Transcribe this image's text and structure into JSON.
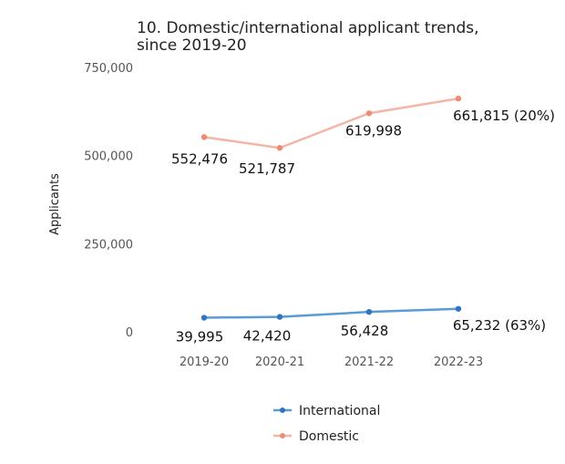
{
  "chart_data": {
    "type": "line",
    "title_lines": [
      "10. Domestic/international applicant trends,",
      "since 2019-20"
    ],
    "xlabel": "",
    "ylabel": "Applicants",
    "categories": [
      "2019-20",
      "2020-21",
      "2021-22",
      "2022-23"
    ],
    "ylim": [
      0,
      750000
    ],
    "yticks": [
      0,
      250000,
      500000,
      750000
    ],
    "ytick_labels": [
      "0",
      "250,000",
      "500,000",
      "750,000"
    ],
    "grid": false,
    "legend_position": "bottom",
    "series": [
      {
        "name": "International",
        "color": "#5b9bd5",
        "marker_color": "#2e75c7",
        "values": [
          39995,
          42420,
          56428,
          65232
        ],
        "labels": [
          "39,995",
          "42,420",
          "56,428",
          "65,232 (63%)"
        ]
      },
      {
        "name": "Domestic",
        "color": "#f4b5a7",
        "marker_color": "#ee8b73",
        "values": [
          552476,
          521787,
          619998,
          661815
        ],
        "labels": [
          "552,476",
          "521,787",
          "619,998",
          "661,815 (20%)"
        ]
      }
    ]
  }
}
